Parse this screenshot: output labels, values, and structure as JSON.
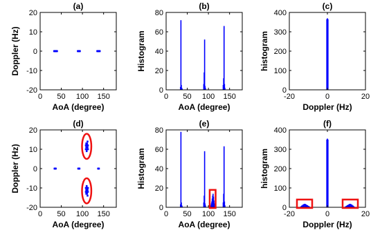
{
  "chart_data": [
    {
      "id": "a",
      "type": "scatter",
      "title": "(a)",
      "xlabel": "AoA (degree)",
      "ylabel": "Doppler (Hz)",
      "xlim": [
        0,
        180
      ],
      "ylim": [
        -20,
        20
      ],
      "xticks": [
        0,
        50,
        100,
        150
      ],
      "xtick_labels": [
        "0",
        "50",
        "100",
        "150"
      ],
      "yticks": [
        -20,
        -10,
        0,
        10,
        20
      ],
      "ytick_labels": [
        "-20",
        "-10",
        "0",
        "10",
        "20"
      ],
      "series": [
        {
          "points": [
            [
              33,
              0
            ],
            [
              34,
              0
            ],
            [
              35,
              0
            ],
            [
              36,
              0
            ],
            [
              37,
              0
            ],
            [
              38,
              0
            ],
            [
              39,
              0
            ],
            [
              40,
              0
            ],
            [
              89,
              0
            ],
            [
              90,
              0
            ],
            [
              91,
              0
            ],
            [
              92,
              0
            ],
            [
              93,
              0
            ],
            [
              94,
              0
            ],
            [
              135,
              0
            ],
            [
              136,
              0
            ],
            [
              137,
              0
            ],
            [
              138,
              0
            ],
            [
              139,
              0
            ],
            [
              140,
              0
            ],
            [
              141,
              0
            ]
          ]
        }
      ],
      "color": "#0000ff",
      "grid": false
    },
    {
      "id": "b",
      "type": "bar",
      "title": "(b)",
      "xlabel": "AoA (degree)",
      "ylabel": "Histogram",
      "xlim": [
        0,
        180
      ],
      "ylim": [
        0,
        80
      ],
      "xticks": [
        0,
        50,
        100,
        150
      ],
      "xtick_labels": [
        "0",
        "50",
        "100",
        "150"
      ],
      "yticks": [
        0,
        20,
        40,
        60,
        80
      ],
      "ytick_labels": [
        "0",
        "20",
        "40",
        "60",
        "80"
      ],
      "x": [
        34,
        35,
        36,
        37,
        38,
        89,
        90,
        91,
        92,
        93,
        135,
        136,
        137,
        138,
        139
      ],
      "values": [
        3,
        72,
        5,
        2,
        1,
        6,
        18,
        52,
        4,
        2,
        5,
        12,
        66,
        6,
        2
      ],
      "color": "#0000ff",
      "grid": false
    },
    {
      "id": "c",
      "type": "bar",
      "title": "(c)",
      "xlabel": "Doppler (Hz)",
      "ylabel": "histogram",
      "xlim": [
        -20,
        20
      ],
      "ylim": [
        0,
        400
      ],
      "xticks": [
        -20,
        0,
        20
      ],
      "xtick_labels": [
        "-20",
        "0",
        "20"
      ],
      "yticks": [
        0,
        100,
        200,
        300,
        400
      ],
      "ytick_labels": [
        "0",
        "100",
        "200",
        "300",
        "400"
      ],
      "x": [
        -0.3,
        0,
        0.3
      ],
      "values": [
        365,
        370,
        365
      ],
      "color": "#0000ff",
      "grid": false
    },
    {
      "id": "d",
      "type": "scatter",
      "title": "(d)",
      "xlabel": "AoA (degree)",
      "ylabel": "Doppler (Hz)",
      "xlim": [
        0,
        180
      ],
      "ylim": [
        -20,
        20
      ],
      "xticks": [
        0,
        50,
        100,
        150
      ],
      "xtick_labels": [
        "0",
        "50",
        "100",
        "150"
      ],
      "yticks": [
        -20,
        -10,
        0,
        10,
        20
      ],
      "ytick_labels": [
        "-20",
        "-10",
        "0",
        "10",
        "20"
      ],
      "series": [
        {
          "points": [
            [
              34,
              0
            ],
            [
              35,
              0
            ],
            [
              36,
              0
            ],
            [
              37,
              0
            ],
            [
              90,
              0
            ],
            [
              91,
              0
            ],
            [
              92,
              0
            ],
            [
              93,
              0
            ],
            [
              137,
              0
            ],
            [
              138,
              0
            ],
            [
              139,
              0
            ],
            [
              108,
              10
            ],
            [
              109,
              11
            ],
            [
              110,
              12
            ],
            [
              111,
              13
            ],
            [
              112,
              11
            ],
            [
              113,
              12
            ],
            [
              110,
              9
            ],
            [
              109,
              13
            ],
            [
              111,
              10
            ],
            [
              112,
              14
            ],
            [
              110,
              11
            ],
            [
              108,
              12
            ],
            [
              113,
              10
            ],
            [
              111,
              12
            ],
            [
              108,
              -10
            ],
            [
              109,
              -11
            ],
            [
              110,
              -12
            ],
            [
              111,
              -13
            ],
            [
              112,
              -11
            ],
            [
              113,
              -12
            ],
            [
              110,
              -9
            ],
            [
              109,
              -13
            ],
            [
              111,
              -10
            ],
            [
              112,
              -14
            ],
            [
              110,
              -11
            ],
            [
              108,
              -12
            ],
            [
              113,
              -10
            ],
            [
              111,
              -12
            ]
          ]
        }
      ],
      "color": "#0000ff",
      "grid": false
    },
    {
      "id": "e",
      "type": "bar",
      "title": "(e)",
      "xlabel": "AoA (degree)",
      "ylabel": "Histogram",
      "xlim": [
        0,
        180
      ],
      "ylim": [
        0,
        80
      ],
      "xticks": [
        0,
        50,
        100,
        150
      ],
      "xtick_labels": [
        "0",
        "50",
        "100",
        "150"
      ],
      "yticks": [
        0,
        20,
        40,
        60,
        80
      ],
      "ytick_labels": [
        "0",
        "20",
        "40",
        "60",
        "80"
      ],
      "x": [
        34,
        35,
        36,
        37,
        38,
        89,
        90,
        91,
        92,
        93,
        106,
        107,
        108,
        109,
        110,
        111,
        112,
        113,
        114,
        115,
        135,
        136,
        137,
        138,
        139
      ],
      "values": [
        3,
        78,
        5,
        2,
        1,
        5,
        12,
        58,
        4,
        2,
        2,
        4,
        6,
        9,
        12,
        14,
        11,
        7,
        4,
        2,
        5,
        14,
        63,
        6,
        2
      ],
      "color": "#0000ff",
      "grid": false
    },
    {
      "id": "f",
      "type": "bar",
      "title": "(f)",
      "xlabel": "Doppler (Hz)",
      "ylabel": "histogram",
      "xlim": [
        -20,
        20
      ],
      "ylim": [
        0,
        400
      ],
      "xticks": [
        -20,
        0,
        20
      ],
      "xtick_labels": [
        "-20",
        "0",
        "20"
      ],
      "yticks": [
        0,
        100,
        200,
        300,
        400
      ],
      "ytick_labels": [
        "0",
        "100",
        "200",
        "300",
        "400"
      ],
      "x": [
        -14,
        -13.5,
        -13,
        -12.5,
        -12,
        -11.5,
        -11,
        -10.5,
        -10,
        -9.5,
        -0.3,
        0,
        0.3,
        9.5,
        10,
        10.5,
        11,
        11.5,
        12,
        12.5,
        13,
        13.5,
        14
      ],
      "values": [
        5,
        9,
        13,
        16,
        18,
        17,
        14,
        11,
        8,
        5,
        350,
        355,
        350,
        5,
        8,
        11,
        14,
        17,
        18,
        16,
        13,
        9,
        5
      ],
      "color": "#0000ff",
      "grid": false
    }
  ],
  "annotations": {
    "highlight_color": "#ee1111",
    "markers": [
      {
        "panel": "d",
        "shape": "ellipse",
        "cx": 110,
        "cy": 11.5,
        "rx": 11,
        "ry": 6.5
      },
      {
        "panel": "d",
        "shape": "ellipse",
        "cx": 110,
        "cy": -11.5,
        "rx": 11,
        "ry": 6.5
      },
      {
        "panel": "e",
        "shape": "rect",
        "x0": 103,
        "x1": 117,
        "y0": 0,
        "y1": 18
      },
      {
        "panel": "f",
        "shape": "rect",
        "x0": -16,
        "x1": -8,
        "y0": 0,
        "y1": 40
      },
      {
        "panel": "f",
        "shape": "rect",
        "x0": 8,
        "x1": 16,
        "y0": 0,
        "y1": 40
      }
    ]
  }
}
